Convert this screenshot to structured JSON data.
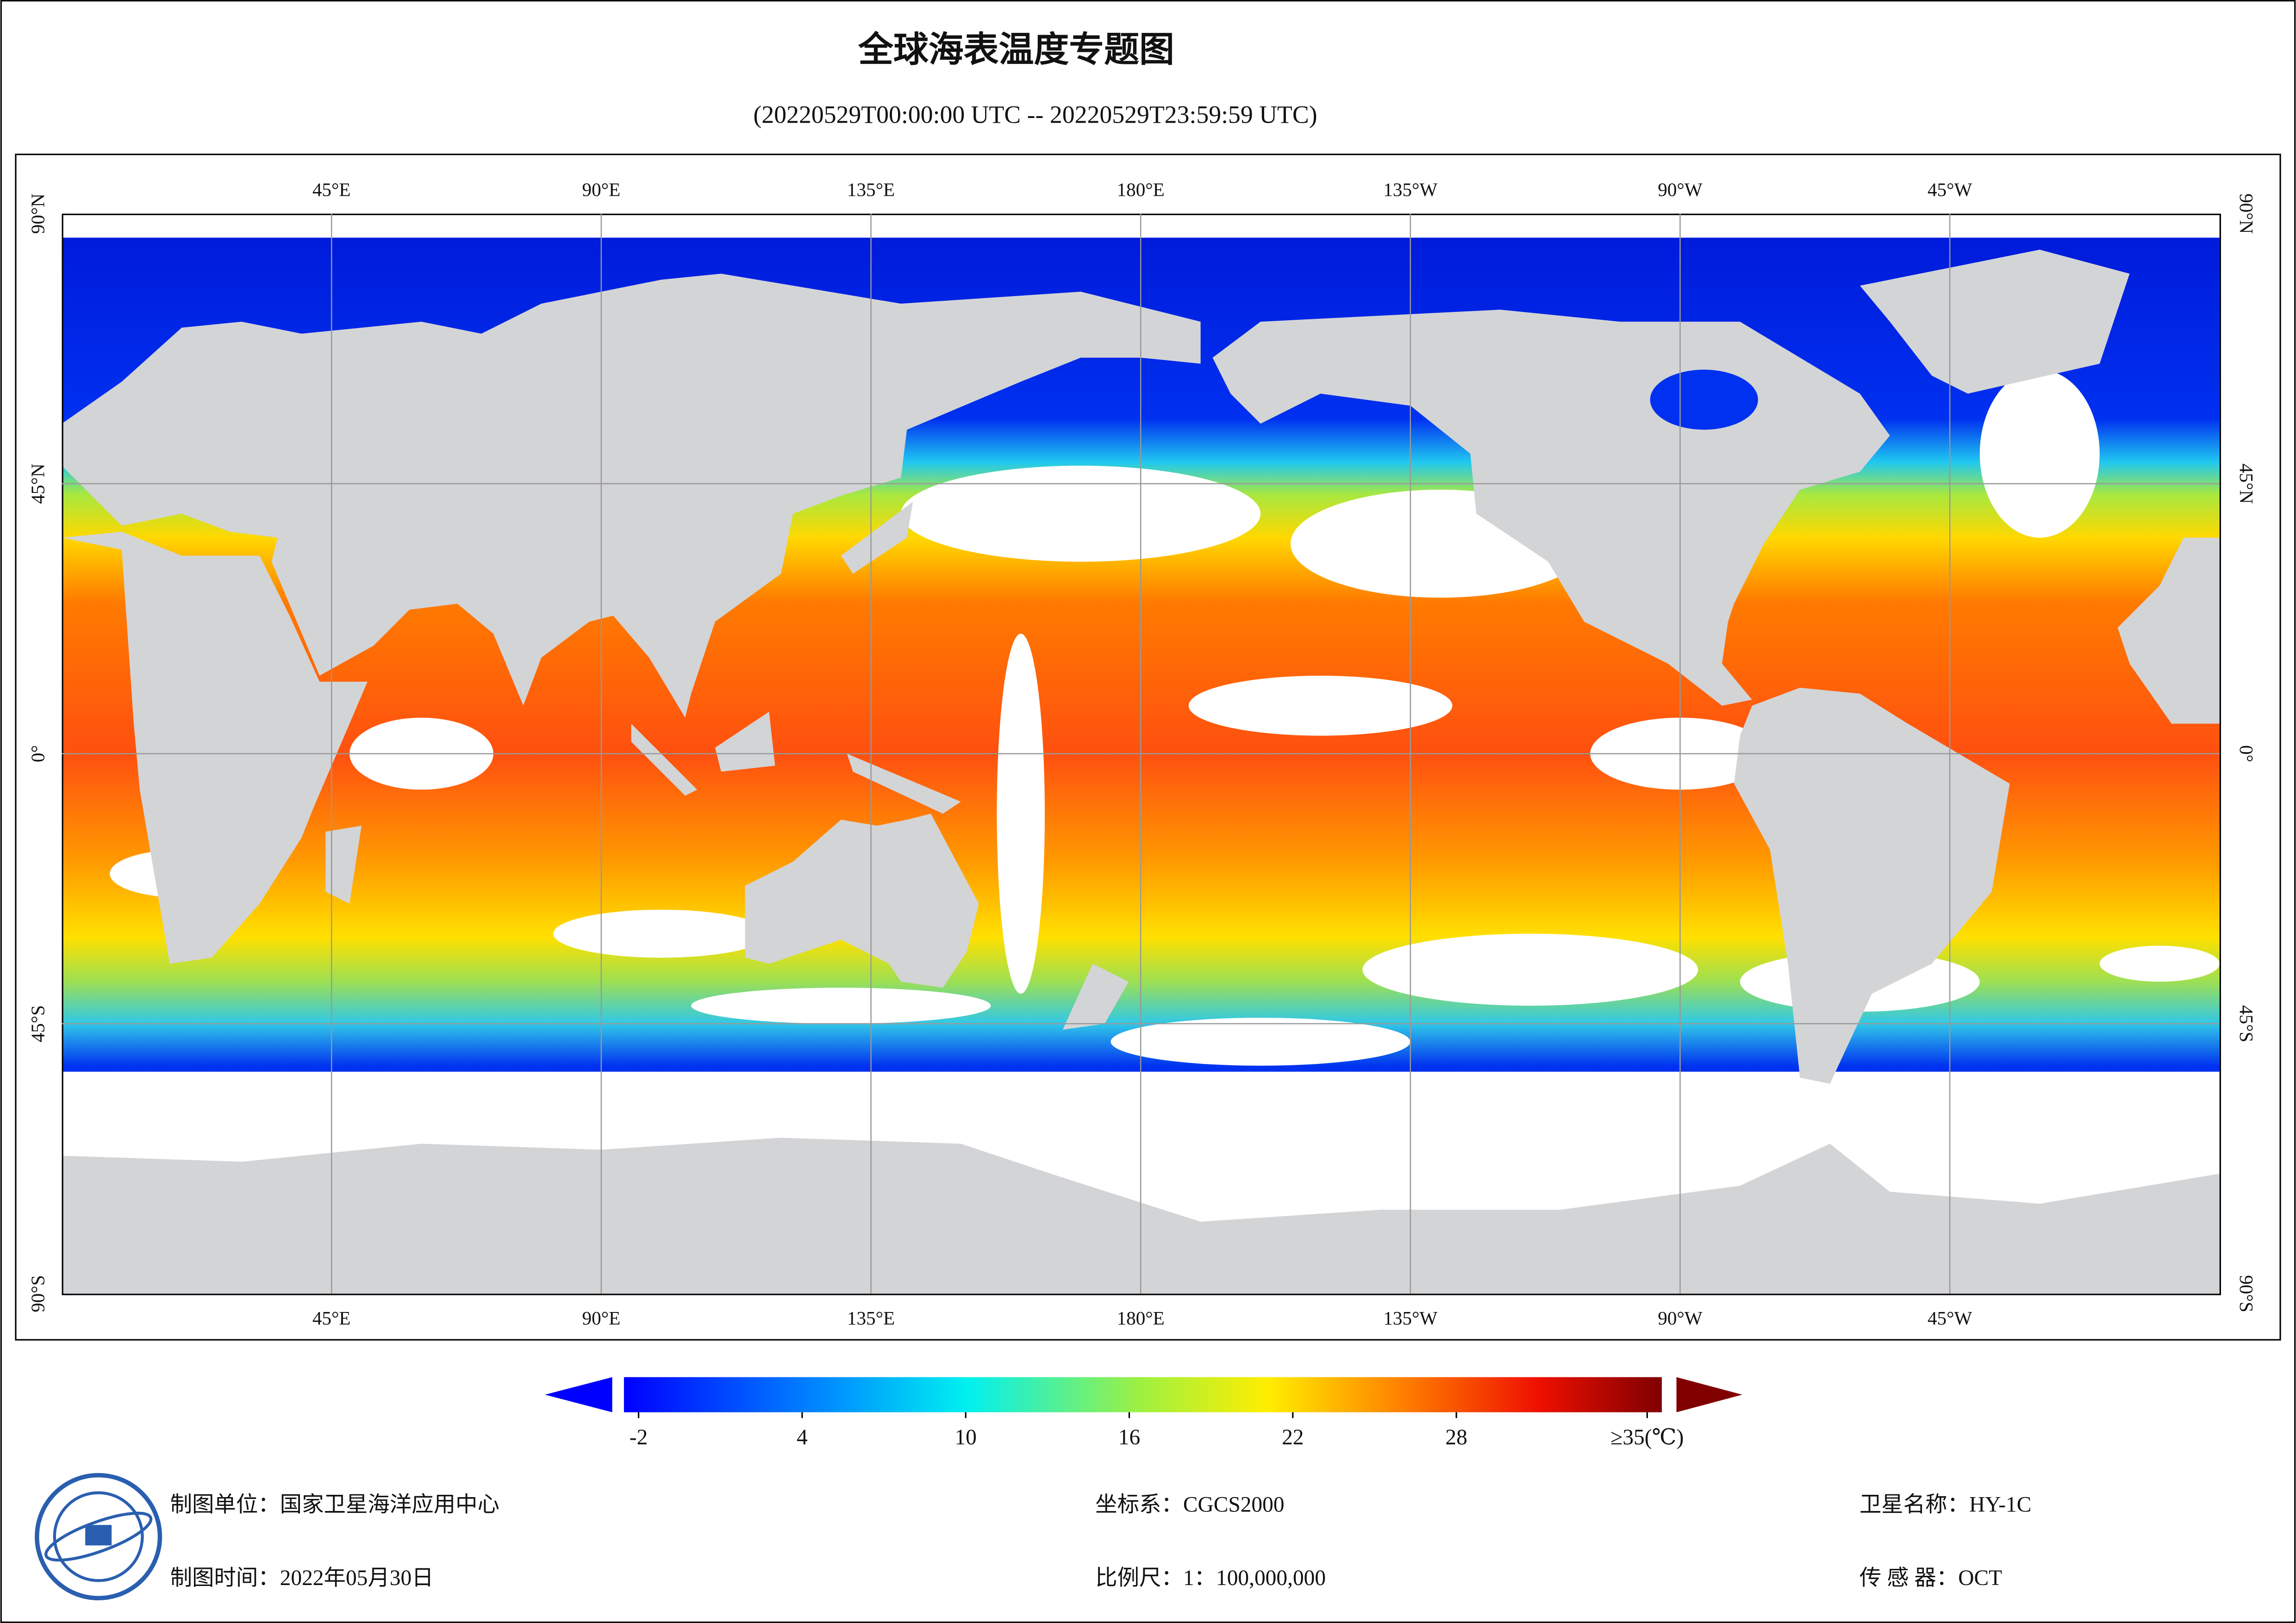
{
  "title": "全球海表温度专题图",
  "subtitle": "(20220529T00:00:00 UTC -- 20220529T23:59:59 UTC)",
  "map": {
    "lon_labels": [
      "45°E",
      "90°E",
      "135°E",
      "180°E",
      "135°W",
      "90°W",
      "45°W"
    ],
    "lat_labels": [
      "90°N",
      "45°N",
      "0°",
      "45°S",
      "90°S"
    ]
  },
  "colorbar": {
    "ticks": [
      -2,
      4,
      10,
      16,
      22,
      28,
      {
        "value": 35,
        "label": "≥35(℃)"
      }
    ]
  },
  "footer": {
    "unit": "制图单位：国家卫星海洋应用中心",
    "time": "制图时间：2022年05月30日",
    "crs": "坐标系：CGCS2000",
    "scale": "比例尺：1：100,000,000",
    "satellite": "卫星名称：HY-1C",
    "sensor": "传 感 器：OCT"
  }
}
